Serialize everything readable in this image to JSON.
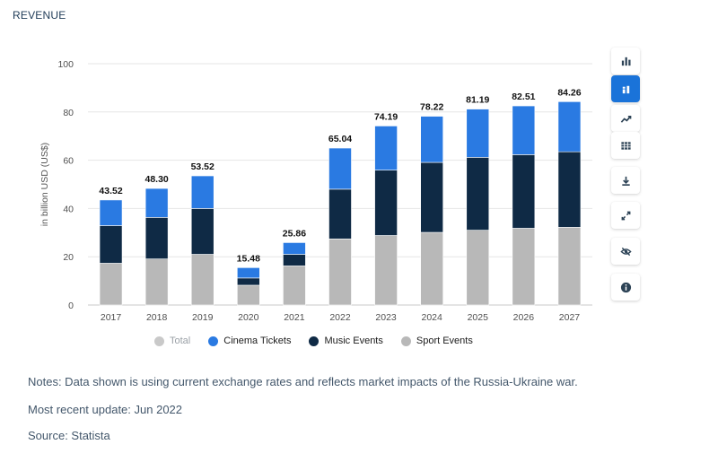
{
  "section_title": "REVENUE",
  "chart_data": {
    "type": "bar",
    "stacked": true,
    "categories": [
      "2017",
      "2018",
      "2019",
      "2020",
      "2021",
      "2022",
      "2023",
      "2024",
      "2025",
      "2026",
      "2027"
    ],
    "totals": [
      "43.52",
      "48.30",
      "53.52",
      "15.48",
      "25.86",
      "65.04",
      "74.19",
      "78.22",
      "81.19",
      "82.51",
      "84.26"
    ],
    "series": [
      {
        "name": "Sport Events",
        "color": "#b8b8b8",
        "values": [
          17.3,
          19.1,
          21.0,
          8.2,
          16.2,
          27.4,
          28.8,
          30.1,
          31.0,
          31.8,
          32.2
        ]
      },
      {
        "name": "Music Events",
        "color": "#0f2a45",
        "values": [
          15.6,
          17.2,
          19.0,
          3.0,
          4.8,
          20.6,
          27.1,
          29.0,
          30.2,
          30.5,
          31.3
        ]
      },
      {
        "name": "Cinema Tickets",
        "color": "#2a7ae2",
        "values": [
          10.62,
          12.0,
          13.52,
          4.28,
          4.86,
          17.04,
          18.29,
          19.12,
          19.99,
          20.21,
          20.76
        ]
      }
    ],
    "ylabel": "in billion USD (US$)",
    "ylim": [
      0,
      100
    ],
    "yticks": [
      0,
      20,
      40,
      60,
      80,
      100
    ],
    "grid": true,
    "legend_position": "bottom"
  },
  "legend": [
    {
      "label": "Total",
      "color": "#c9c9c9",
      "active": false
    },
    {
      "label": "Cinema Tickets",
      "color": "#2a7ae2",
      "active": true
    },
    {
      "label": "Music Events",
      "color": "#0f2a45",
      "active": true
    },
    {
      "label": "Sport Events",
      "color": "#b8b8b8",
      "active": true
    }
  ],
  "toolbar": [
    {
      "name": "bar-chart-icon",
      "active": false
    },
    {
      "name": "stacked-bar-icon",
      "active": true
    },
    {
      "name": "trend-line-icon",
      "active": false
    },
    {
      "name": "table-icon",
      "active": false
    },
    {
      "name": "download-icon",
      "active": false
    },
    {
      "name": "fullscreen-icon",
      "active": false
    },
    {
      "name": "hide-icon",
      "active": false
    },
    {
      "name": "info-icon",
      "active": false
    }
  ],
  "notes": {
    "note": "Notes: Data shown is using current exchange rates and reflects market impacts of the Russia-Ukraine war.",
    "update": "Most recent update: Jun 2022",
    "source": "Source: Statista"
  }
}
